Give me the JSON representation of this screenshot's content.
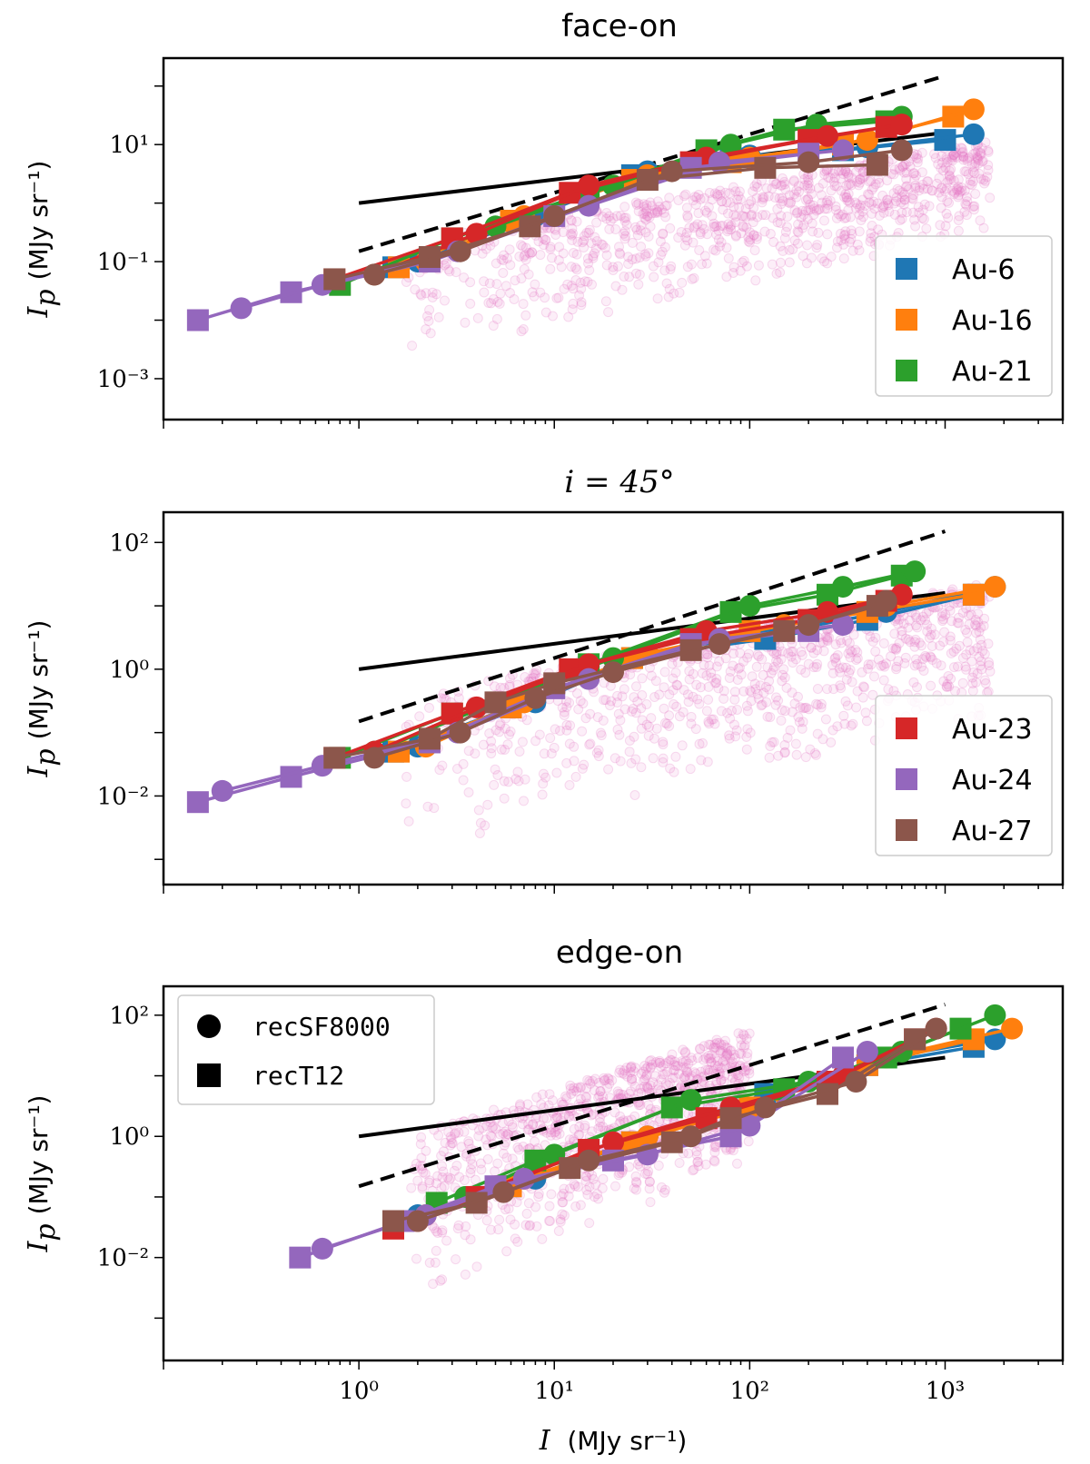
{
  "figure": {
    "x_label_var": "I",
    "x_label_unit": "(MJy sr⁻¹)",
    "y_label_var": "I",
    "y_label_sub": "p",
    "y_label_unit": "(MJy sr⁻¹)",
    "x_tick_labels": [
      "10⁰",
      "10¹",
      "10²",
      "10³"
    ]
  },
  "legend_halos": {
    "panel1": [
      {
        "name": "Au-6",
        "color": "#1f77b4"
      },
      {
        "name": "Au-16",
        "color": "#ff7f0e"
      },
      {
        "name": "Au-21",
        "color": "#2ca02c"
      }
    ],
    "panel2": [
      {
        "name": "Au-23",
        "color": "#d62728"
      },
      {
        "name": "Au-24",
        "color": "#9467bd"
      },
      {
        "name": "Au-27",
        "color": "#8c564b"
      }
    ]
  },
  "legend_markers": [
    {
      "name": "recSF8000",
      "marker": "circle"
    },
    {
      "name": "recT12",
      "marker": "square"
    }
  ],
  "colors": {
    "Au-6": "#1f77b4",
    "Au-16": "#ff7f0e",
    "Au-21": "#2ca02c",
    "Au-23": "#d62728",
    "Au-24": "#9467bd",
    "Au-27": "#8c564b",
    "scatter": "#e377c2",
    "reference_lines": "#000000"
  },
  "chart_data": [
    {
      "type": "line",
      "title": "face-on",
      "x_scale": "log",
      "y_scale": "log",
      "xlim": [
        0.1,
        4000
      ],
      "ylim": [
        0.0002,
        300
      ],
      "y_ticks": [
        {
          "value": 0.001,
          "label": "10⁻³"
        },
        {
          "value": 0.1,
          "label": "10⁻¹"
        },
        {
          "value": 10,
          "label": "10¹"
        }
      ],
      "reference_lines": [
        {
          "style": "dashed",
          "x": [
            1,
            1000
          ],
          "y": [
            0.15,
            150
          ]
        },
        {
          "style": "solid",
          "x": [
            1,
            1000
          ],
          "y": [
            1.0,
            16
          ]
        }
      ],
      "pink_scatter": {
        "x_min": 1.6,
        "x_max": 1700,
        "low_envelope_y": 0.002,
        "high_envelope_y": 0.2
      },
      "series": [
        {
          "name": "Au-6",
          "marker": "square",
          "x": [
            1.5,
            6,
            25,
            80,
            300,
            1000
          ],
          "y": [
            0.08,
            0.5,
            3,
            6,
            8,
            12
          ]
        },
        {
          "name": "Au-6",
          "marker": "circle",
          "x": [
            2,
            8,
            30,
            100,
            400,
            1400
          ],
          "y": [
            0.1,
            0.6,
            3.5,
            6.5,
            9,
            15
          ]
        },
        {
          "name": "Au-16",
          "marker": "square",
          "x": [
            1.6,
            6,
            25,
            80,
            300,
            1100
          ],
          "y": [
            0.08,
            0.5,
            2.5,
            5,
            10,
            30
          ]
        },
        {
          "name": "Au-16",
          "marker": "circle",
          "x": [
            2.2,
            7,
            30,
            100,
            400,
            1400
          ],
          "y": [
            0.1,
            0.6,
            3,
            6,
            12,
            40
          ]
        },
        {
          "name": "Au-21",
          "marker": "square",
          "x": [
            0.8,
            3,
            15,
            60,
            150,
            500
          ],
          "y": [
            0.04,
            0.25,
            1.5,
            8,
            18,
            25
          ]
        },
        {
          "name": "Au-21",
          "marker": "circle",
          "x": [
            1.2,
            5,
            20,
            80,
            220,
            600
          ],
          "y": [
            0.06,
            0.4,
            2,
            10,
            22,
            30
          ]
        },
        {
          "name": "Au-23",
          "marker": "square",
          "x": [
            0.75,
            3,
            12,
            50,
            200,
            500
          ],
          "y": [
            0.05,
            0.25,
            1.5,
            5,
            12,
            20
          ]
        },
        {
          "name": "Au-23",
          "marker": "circle",
          "x": [
            1.2,
            4,
            15,
            60,
            250,
            600
          ],
          "y": [
            0.06,
            0.3,
            2,
            6,
            14,
            22
          ]
        },
        {
          "name": "Au-24",
          "marker": "square",
          "x": [
            0.15,
            0.45,
            2.3,
            10,
            50,
            200
          ],
          "y": [
            0.01,
            0.03,
            0.1,
            0.6,
            4,
            7
          ]
        },
        {
          "name": "Au-24",
          "marker": "circle",
          "x": [
            0.25,
            0.65,
            3.2,
            15,
            70,
            300
          ],
          "y": [
            0.016,
            0.04,
            0.15,
            0.9,
            5,
            8
          ]
        },
        {
          "name": "Au-27",
          "marker": "square",
          "x": [
            0.75,
            2.3,
            7.5,
            30,
            120,
            450
          ],
          "y": [
            0.05,
            0.12,
            0.4,
            2.5,
            4,
            4.5
          ]
        },
        {
          "name": "Au-27",
          "marker": "circle",
          "x": [
            1.2,
            3.3,
            10,
            40,
            200,
            600
          ],
          "y": [
            0.06,
            0.15,
            0.6,
            3.5,
            5,
            8
          ]
        }
      ]
    },
    {
      "type": "line",
      "title": "i = 45°",
      "x_scale": "log",
      "y_scale": "log",
      "xlim": [
        0.1,
        4000
      ],
      "ylim": [
        0.0004,
        300
      ],
      "y_ticks": [
        {
          "value": 0.01,
          "label": "10⁻²"
        },
        {
          "value": 1,
          "label": "10⁰"
        },
        {
          "value": 100,
          "label": "10²"
        }
      ],
      "reference_lines": [
        {
          "style": "dashed",
          "x": [
            1,
            1000
          ],
          "y": [
            0.15,
            150
          ]
        },
        {
          "style": "solid",
          "x": [
            1,
            1000
          ],
          "y": [
            1.0,
            16
          ]
        }
      ],
      "pink_scatter": {
        "x_min": 1.6,
        "x_max": 1700,
        "low_envelope_y": 0.001,
        "high_envelope_y": 0.4
      },
      "series": [
        {
          "name": "Au-6",
          "marker": "square",
          "x": [
            1.5,
            6,
            25,
            120,
            400,
            1400
          ],
          "y": [
            0.05,
            0.25,
            1.5,
            3,
            6,
            15
          ]
        },
        {
          "name": "Au-6",
          "marker": "circle",
          "x": [
            2,
            8,
            30,
            150,
            500,
            1800
          ],
          "y": [
            0.06,
            0.3,
            1.8,
            4,
            8,
            20
          ]
        },
        {
          "name": "Au-16",
          "marker": "square",
          "x": [
            1.6,
            6,
            25,
            100,
            400,
            1400
          ],
          "y": [
            0.05,
            0.25,
            1.5,
            4,
            8,
            15
          ]
        },
        {
          "name": "Au-16",
          "marker": "circle",
          "x": [
            2.2,
            7,
            30,
            150,
            500,
            1800
          ],
          "y": [
            0.06,
            0.3,
            1.8,
            5,
            10,
            20
          ]
        },
        {
          "name": "Au-21",
          "marker": "square",
          "x": [
            0.8,
            3,
            15,
            80,
            250,
            600
          ],
          "y": [
            0.04,
            0.2,
            1.2,
            8,
            15,
            30
          ]
        },
        {
          "name": "Au-21",
          "marker": "circle",
          "x": [
            1.2,
            5,
            20,
            100,
            300,
            700
          ],
          "y": [
            0.05,
            0.3,
            1.5,
            10,
            20,
            35
          ]
        },
        {
          "name": "Au-23",
          "marker": "square",
          "x": [
            0.75,
            3,
            12,
            50,
            200,
            500
          ],
          "y": [
            0.04,
            0.2,
            1,
            3,
            6,
            12
          ]
        },
        {
          "name": "Au-23",
          "marker": "circle",
          "x": [
            1.2,
            4,
            15,
            60,
            250,
            600
          ],
          "y": [
            0.05,
            0.25,
            1.2,
            4,
            8,
            15
          ]
        },
        {
          "name": "Au-24",
          "marker": "square",
          "x": [
            0.15,
            0.45,
            2.3,
            10,
            50,
            200
          ],
          "y": [
            0.008,
            0.02,
            0.07,
            0.5,
            2.5,
            4
          ]
        },
        {
          "name": "Au-24",
          "marker": "circle",
          "x": [
            0.2,
            0.65,
            3.2,
            15,
            70,
            300
          ],
          "y": [
            0.012,
            0.03,
            0.1,
            0.7,
            3,
            5
          ]
        },
        {
          "name": "Au-27",
          "marker": "square",
          "x": [
            0.75,
            2.3,
            5,
            10,
            50,
            150,
            450
          ],
          "y": [
            0.04,
            0.08,
            0.3,
            0.6,
            2,
            4,
            10
          ]
        },
        {
          "name": "Au-27",
          "marker": "circle",
          "x": [
            1.2,
            3.3,
            8,
            20,
            70,
            200,
            500
          ],
          "y": [
            0.04,
            0.1,
            0.35,
            0.9,
            2.5,
            5,
            12
          ]
        }
      ]
    },
    {
      "type": "line",
      "title": "edge-on",
      "x_scale": "log",
      "y_scale": "log",
      "xlim": [
        0.1,
        4000
      ],
      "ylim": [
        0.0002,
        300
      ],
      "y_ticks": [
        {
          "value": 0.01,
          "label": "10⁻²"
        },
        {
          "value": 1,
          "label": "10⁰"
        },
        {
          "value": 100,
          "label": "10²"
        }
      ],
      "reference_lines": [
        {
          "style": "dashed",
          "x": [
            1,
            1000
          ],
          "y": [
            0.15,
            150
          ]
        },
        {
          "style": "solid",
          "x": [
            1,
            1000
          ],
          "y": [
            1.0,
            20
          ]
        }
      ],
      "pink_scatter": {
        "x_min": 1.8,
        "x_max": 100,
        "low_envelope_y": 0.002,
        "high_envelope_y": 1.0
      },
      "series": [
        {
          "name": "Au-6",
          "marker": "square",
          "x": [
            1.5,
            6,
            25,
            120,
            400,
            1400
          ],
          "y": [
            0.04,
            0.15,
            0.8,
            5,
            15,
            30
          ]
        },
        {
          "name": "Au-6",
          "marker": "circle",
          "x": [
            2,
            8,
            30,
            150,
            500,
            1800
          ],
          "y": [
            0.05,
            0.2,
            1,
            6,
            20,
            40
          ]
        },
        {
          "name": "Au-16",
          "marker": "square",
          "x": [
            1.6,
            6,
            25,
            100,
            400,
            1400
          ],
          "y": [
            0.04,
            0.15,
            0.8,
            3,
            15,
            40
          ]
        },
        {
          "name": "Au-16",
          "marker": "circle",
          "x": [
            2.2,
            7,
            30,
            150,
            500,
            2200
          ],
          "y": [
            0.05,
            0.2,
            1,
            5,
            20,
            60
          ]
        },
        {
          "name": "Au-21",
          "marker": "square",
          "x": [
            2.5,
            8,
            40,
            150,
            500,
            1200
          ],
          "y": [
            0.08,
            0.4,
            3,
            6,
            20,
            60
          ]
        },
        {
          "name": "Au-21",
          "marker": "circle",
          "x": [
            3.5,
            10,
            50,
            200,
            600,
            1800
          ],
          "y": [
            0.1,
            0.5,
            4,
            8,
            25,
            100
          ]
        },
        {
          "name": "Au-23",
          "marker": "square",
          "x": [
            1.5,
            4,
            15,
            60,
            250,
            700
          ],
          "y": [
            0.03,
            0.1,
            0.6,
            2,
            8,
            40
          ]
        },
        {
          "name": "Au-23",
          "marker": "circle",
          "x": [
            2,
            5,
            20,
            80,
            300,
            900
          ],
          "y": [
            0.04,
            0.15,
            0.8,
            3,
            10,
            60
          ]
        },
        {
          "name": "Au-24",
          "marker": "square",
          "x": [
            0.5,
            1.7,
            5,
            20,
            80,
            300
          ],
          "y": [
            0.01,
            0.04,
            0.15,
            0.4,
            1,
            20
          ]
        },
        {
          "name": "Au-24",
          "marker": "circle",
          "x": [
            0.65,
            2.2,
            7,
            30,
            100,
            400
          ],
          "y": [
            0.014,
            0.05,
            0.2,
            0.5,
            1.5,
            25
          ]
        },
        {
          "name": "Au-27",
          "marker": "square",
          "x": [
            1.5,
            4,
            12,
            40,
            80,
            250,
            700
          ],
          "y": [
            0.04,
            0.08,
            0.3,
            0.8,
            2,
            5,
            40
          ]
        },
        {
          "name": "Au-27",
          "marker": "circle",
          "x": [
            2,
            5.5,
            15,
            50,
            120,
            350,
            900
          ],
          "y": [
            0.04,
            0.12,
            0.4,
            1,
            3,
            8,
            60
          ]
        }
      ]
    }
  ]
}
